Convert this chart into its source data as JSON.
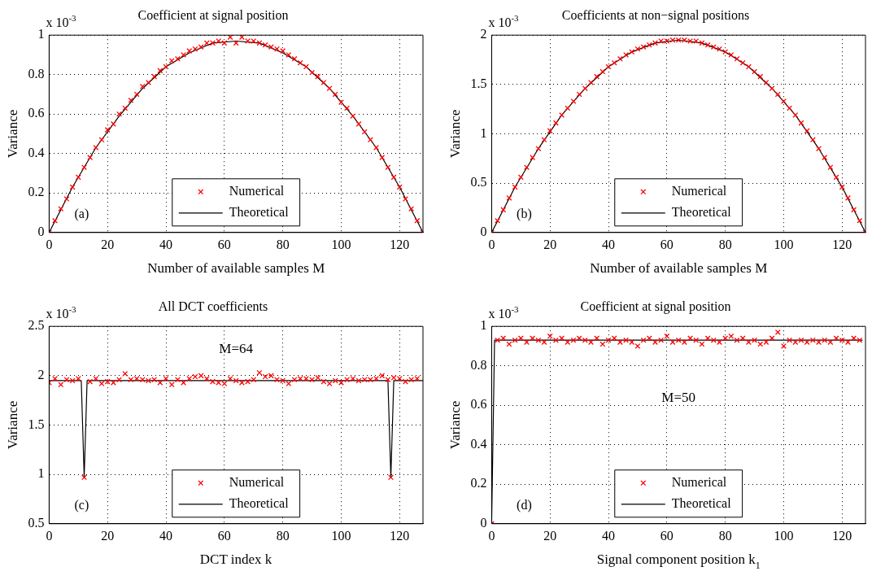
{
  "chart_data": [
    {
      "type": "line",
      "title": "Coefficient at signal position",
      "xlabel": "Number of available samples M",
      "ylabel": "Variance",
      "xlim": [
        0,
        128
      ],
      "xticks": [
        0,
        20,
        40,
        60,
        80,
        100,
        120
      ],
      "ylim": [
        0,
        1
      ],
      "yticks": [
        0,
        0.2,
        0.4,
        0.6,
        0.8,
        1
      ],
      "grid": true,
      "legend": "bottom",
      "annotations": [
        "x 10$^{-3}$",
        "(a)"
      ],
      "series": [
        {
          "name": "Numerical",
          "type": "scatter",
          "marker": "cross",
          "color": "#ff0000",
          "x": [
            0,
            2,
            4,
            6,
            8,
            10,
            12,
            14,
            16,
            18,
            20,
            22,
            24,
            26,
            28,
            30,
            32,
            34,
            36,
            38,
            40,
            42,
            44,
            46,
            48,
            50,
            52,
            54,
            56,
            58,
            60,
            62,
            64,
            66,
            68,
            70,
            72,
            74,
            76,
            78,
            80,
            82,
            84,
            86,
            88,
            90,
            92,
            94,
            96,
            98,
            100,
            102,
            104,
            106,
            108,
            110,
            112,
            114,
            116,
            118,
            120,
            122,
            124,
            126,
            128
          ],
          "values": [
            0,
            0.06,
            0.12,
            0.17,
            0.23,
            0.28,
            0.33,
            0.38,
            0.43,
            0.47,
            0.52,
            0.55,
            0.6,
            0.63,
            0.67,
            0.7,
            0.74,
            0.76,
            0.79,
            0.82,
            0.84,
            0.87,
            0.88,
            0.9,
            0.92,
            0.93,
            0.94,
            0.96,
            0.96,
            0.97,
            0.96,
            0.99,
            0.96,
            0.99,
            0.97,
            0.97,
            0.96,
            0.95,
            0.94,
            0.93,
            0.92,
            0.9,
            0.88,
            0.86,
            0.84,
            0.81,
            0.79,
            0.76,
            0.73,
            0.7,
            0.66,
            0.63,
            0.59,
            0.55,
            0.51,
            0.47,
            0.43,
            0.38,
            0.33,
            0.28,
            0.23,
            0.17,
            0.12,
            0.06,
            0
          ]
        },
        {
          "name": "Theoretical",
          "marker": "none",
          "color": "#000000",
          "x": [
            0,
            8,
            16,
            24,
            32,
            40,
            48,
            56,
            64,
            72,
            80,
            88,
            96,
            104,
            112,
            120,
            128
          ],
          "values": [
            0,
            0.23,
            0.43,
            0.59,
            0.73,
            0.84,
            0.91,
            0.96,
            0.97,
            0.96,
            0.91,
            0.84,
            0.73,
            0.59,
            0.43,
            0.23,
            0
          ]
        }
      ]
    },
    {
      "type": "line",
      "title": "Coefficients at non−signal positions",
      "xlabel": "Number of available samples M",
      "ylabel": "Variance",
      "xlim": [
        0,
        128
      ],
      "xticks": [
        0,
        20,
        40,
        60,
        80,
        100,
        120
      ],
      "ylim": [
        0,
        2
      ],
      "yticks": [
        0,
        0.5,
        1,
        1.5,
        2
      ],
      "grid": true,
      "legend": "bottom",
      "annotations": [
        "x 10$^{-3}$",
        "(b)"
      ],
      "series": [
        {
          "name": "Numerical",
          "type": "scatter",
          "marker": "cross",
          "color": "#ff0000",
          "x": [
            0,
            2,
            4,
            6,
            8,
            10,
            12,
            14,
            16,
            18,
            20,
            22,
            24,
            26,
            28,
            30,
            32,
            34,
            36,
            38,
            40,
            42,
            44,
            46,
            48,
            50,
            52,
            54,
            56,
            58,
            60,
            62,
            64,
            66,
            68,
            70,
            72,
            74,
            76,
            78,
            80,
            82,
            84,
            86,
            88,
            90,
            92,
            94,
            96,
            98,
            100,
            102,
            104,
            106,
            108,
            110,
            112,
            114,
            116,
            118,
            120,
            122,
            124,
            126,
            128
          ],
          "values": [
            0,
            0.12,
            0.23,
            0.35,
            0.46,
            0.56,
            0.66,
            0.76,
            0.85,
            0.94,
            1.03,
            1.11,
            1.19,
            1.26,
            1.33,
            1.4,
            1.46,
            1.52,
            1.58,
            1.63,
            1.68,
            1.72,
            1.76,
            1.8,
            1.83,
            1.86,
            1.88,
            1.9,
            1.92,
            1.94,
            1.94,
            1.95,
            1.95,
            1.95,
            1.94,
            1.94,
            1.92,
            1.9,
            1.88,
            1.86,
            1.83,
            1.8,
            1.76,
            1.72,
            1.68,
            1.63,
            1.58,
            1.52,
            1.46,
            1.4,
            1.33,
            1.26,
            1.19,
            1.11,
            1.03,
            0.94,
            0.85,
            0.76,
            0.66,
            0.56,
            0.46,
            0.35,
            0.23,
            0.12,
            0
          ]
        },
        {
          "name": "Theoretical",
          "marker": "none",
          "color": "#000000",
          "x": [
            0,
            8,
            16,
            24,
            32,
            40,
            48,
            56,
            64,
            72,
            80,
            88,
            96,
            104,
            112,
            120,
            128
          ],
          "values": [
            0,
            0.46,
            0.85,
            1.19,
            1.46,
            1.68,
            1.83,
            1.92,
            1.95,
            1.92,
            1.83,
            1.68,
            1.46,
            1.19,
            0.85,
            0.46,
            0
          ]
        }
      ]
    },
    {
      "type": "line",
      "title": "All DCT coefficients",
      "xlabel": "DCT index k",
      "ylabel": "Variance",
      "xlim": [
        0,
        128
      ],
      "xticks": [
        0,
        20,
        40,
        60,
        80,
        100,
        120
      ],
      "ylim": [
        0.5,
        2.5
      ],
      "yticks": [
        0.5,
        1,
        1.5,
        2,
        2.5
      ],
      "grid": true,
      "legend": "bottom",
      "annotations": [
        "x 10$^{-3}$",
        "(c)",
        "M=64"
      ],
      "series": [
        {
          "name": "Numerical",
          "type": "scatter",
          "marker": "cross",
          "color": "#ff0000",
          "x": [
            0,
            2,
            4,
            6,
            8,
            10,
            12,
            14,
            16,
            18,
            20,
            22,
            24,
            26,
            28,
            30,
            32,
            34,
            36,
            38,
            40,
            42,
            44,
            46,
            48,
            50,
            52,
            54,
            56,
            58,
            60,
            62,
            64,
            66,
            68,
            70,
            72,
            74,
            76,
            78,
            80,
            82,
            84,
            86,
            88,
            90,
            92,
            94,
            96,
            98,
            100,
            102,
            104,
            106,
            108,
            110,
            112,
            114,
            116,
            117,
            118,
            120,
            122,
            124,
            126
          ],
          "values": [
            1.93,
            1.97,
            1.91,
            1.96,
            1.95,
            1.97,
            0.97,
            1.94,
            1.97,
            1.92,
            1.94,
            1.93,
            1.96,
            2.02,
            1.96,
            1.97,
            1.96,
            1.95,
            1.96,
            1.93,
            1.97,
            1.91,
            1.96,
            1.93,
            1.97,
            1.99,
            2,
            1.97,
            1.94,
            1.93,
            1.92,
            1.97,
            1.95,
            1.93,
            1.94,
            1.96,
            2.03,
            1.99,
            2,
            1.96,
            1.95,
            1.92,
            1.96,
            1.97,
            1.97,
            1.96,
            1.98,
            1.94,
            1.92,
            1.95,
            1.93,
            1.96,
            1.97,
            1.95,
            1.96,
            1.96,
            1.97,
            2,
            1.96,
            0.97,
            1.98,
            1.97,
            1.94,
            1.96,
            1.97
          ]
        },
        {
          "name": "Theoretical",
          "marker": "none",
          "color": "#000000",
          "x": [
            0,
            11,
            12,
            13,
            116,
            117,
            118,
            128
          ],
          "values": [
            1.95,
            1.95,
            0.97,
            1.95,
            1.95,
            0.97,
            1.95,
            1.95
          ]
        }
      ]
    },
    {
      "type": "line",
      "title": "Coefficient at signal position",
      "xlabel": "Signal component position k$_{1}$",
      "ylabel": "Variance",
      "xlim": [
        0,
        128
      ],
      "xticks": [
        0,
        20,
        40,
        60,
        80,
        100,
        120
      ],
      "ylim": [
        0,
        1
      ],
      "yticks": [
        0,
        0.2,
        0.4,
        0.6,
        0.8,
        1
      ],
      "grid": true,
      "legend": "bottom",
      "annotations": [
        "x 10$^{-3}$",
        "(d)",
        "M=50"
      ],
      "series": [
        {
          "name": "Numerical",
          "type": "scatter",
          "marker": "cross",
          "color": "#ff0000",
          "x": [
            0,
            2,
            4,
            6,
            8,
            10,
            12,
            14,
            16,
            18,
            20,
            22,
            24,
            26,
            28,
            30,
            32,
            34,
            36,
            38,
            40,
            42,
            44,
            46,
            48,
            50,
            52,
            54,
            56,
            58,
            60,
            62,
            64,
            66,
            68,
            70,
            72,
            74,
            76,
            78,
            80,
            82,
            84,
            86,
            88,
            90,
            92,
            94,
            96,
            98,
            100,
            102,
            104,
            106,
            108,
            110,
            112,
            114,
            116,
            118,
            120,
            122,
            124,
            126
          ],
          "values": [
            0,
            0.93,
            0.94,
            0.91,
            0.93,
            0.94,
            0.92,
            0.94,
            0.93,
            0.92,
            0.95,
            0.93,
            0.94,
            0.92,
            0.93,
            0.94,
            0.93,
            0.92,
            0.94,
            0.91,
            0.93,
            0.94,
            0.92,
            0.93,
            0.92,
            0.9,
            0.93,
            0.94,
            0.92,
            0.93,
            0.95,
            0.92,
            0.93,
            0.92,
            0.94,
            0.93,
            0.91,
            0.94,
            0.93,
            0.92,
            0.94,
            0.95,
            0.93,
            0.94,
            0.92,
            0.93,
            0.91,
            0.92,
            0.94,
            0.97,
            0.9,
            0.93,
            0.92,
            0.93,
            0.92,
            0.93,
            0.92,
            0.93,
            0.92,
            0.94,
            0.93,
            0.92,
            0.94,
            0.93
          ]
        },
        {
          "name": "Theoretical",
          "marker": "none",
          "color": "#000000",
          "x": [
            0,
            1,
            127
          ],
          "values": [
            0,
            0.93,
            0.93
          ]
        }
      ]
    }
  ]
}
